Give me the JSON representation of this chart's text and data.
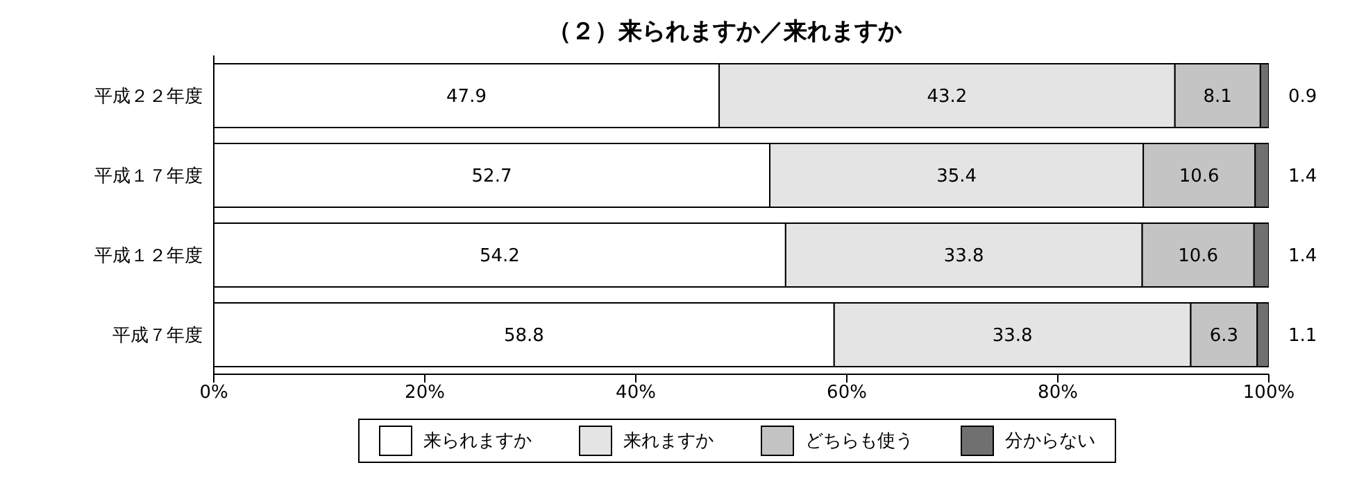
{
  "chart_data": {
    "type": "bar",
    "title": "（２）来られますか／来れますか",
    "orientation": "horizontal",
    "stacked": true,
    "categories": [
      "平成２２年度",
      "平成１７年度",
      "平成１２年度",
      "平成７年度"
    ],
    "series": [
      {
        "name": "来られますか",
        "color": "#ffffff",
        "values": [
          47.9,
          52.7,
          54.2,
          58.8
        ]
      },
      {
        "name": "来れますか",
        "color": "#e4e4e4",
        "values": [
          43.2,
          35.4,
          33.8,
          33.8
        ]
      },
      {
        "name": "どちらも使う",
        "color": "#c4c4c4",
        "values": [
          8.1,
          10.6,
          10.6,
          6.3
        ]
      },
      {
        "name": "分からない",
        "color": "#707070",
        "values": [
          0.9,
          1.4,
          1.4,
          1.1
        ]
      }
    ],
    "xlim": [
      0,
      100
    ],
    "xticks": [
      {
        "value": 0,
        "label": "0%"
      },
      {
        "value": 20,
        "label": "20%"
      },
      {
        "value": 40,
        "label": "40%"
      },
      {
        "value": 60,
        "label": "60%"
      },
      {
        "value": 80,
        "label": "80%"
      },
      {
        "value": 100,
        "label": "100%"
      }
    ],
    "data_labels": true,
    "legend": "bottom",
    "grid": false
  }
}
